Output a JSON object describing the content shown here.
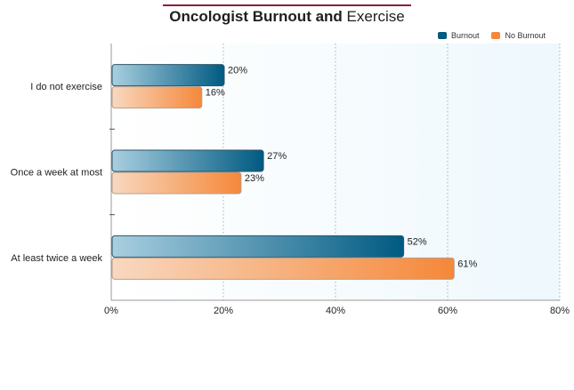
{
  "chart_data": {
    "type": "bar",
    "orientation": "horizontal",
    "title_bold": "Oncologist Burnout and",
    "title_light": "Exercise",
    "categories": [
      "I do not exercise",
      "Once a week at most",
      "At least twice a week"
    ],
    "series": [
      {
        "name": "Burnout",
        "values": [
          20,
          27,
          52
        ],
        "labels": [
          "20%",
          "27%",
          "52%"
        ],
        "color": "#005a82"
      },
      {
        "name": "No Burnout",
        "values": [
          16,
          23,
          61
        ],
        "labels": [
          "16%",
          "23%",
          "61%"
        ],
        "color": "#f5883a"
      }
    ],
    "xlim": [
      0,
      80
    ],
    "xticks": [
      0,
      20,
      40,
      60,
      80
    ],
    "xtick_labels": [
      "0%",
      "20%",
      "40%",
      "60%",
      "80%"
    ],
    "grid": "vertical dotted",
    "legend_position": "top-right",
    "colors": {
      "title_rule": "#8b1f3a",
      "plot_background": "#eef8fd"
    }
  }
}
